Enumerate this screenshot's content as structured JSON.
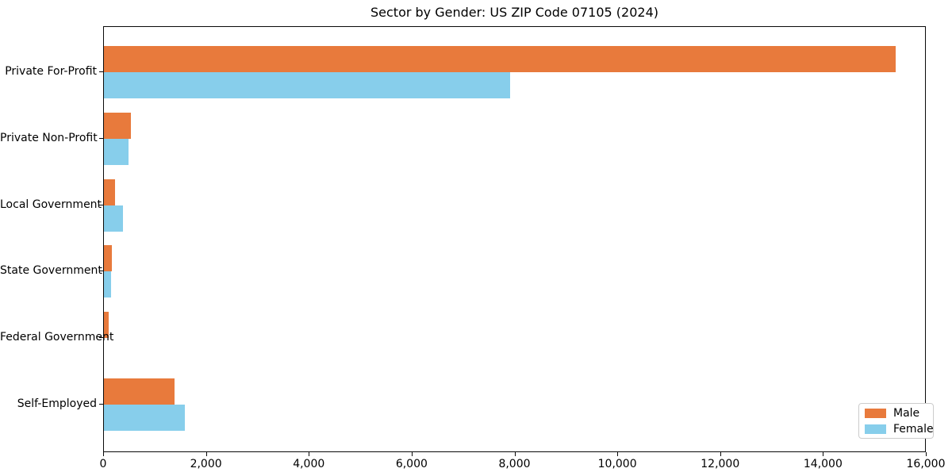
{
  "chart_data": {
    "type": "bar",
    "orientation": "horizontal",
    "title": "Sector by Gender: US ZIP Code 07105 (2024)",
    "categories": [
      "Private For-Profit",
      "Private Non-Profit",
      "Local Government",
      "State Government",
      "Federal Government",
      "Self-Employed"
    ],
    "series": [
      {
        "name": "Male",
        "color": "#e87a3c",
        "values": [
          15400,
          520,
          215,
          150,
          100,
          1380
        ]
      },
      {
        "name": "Female",
        "color": "#87ceeb",
        "values": [
          7900,
          475,
          375,
          145,
          0,
          1580
        ]
      }
    ],
    "xlim": [
      0,
      16000
    ],
    "xticks": {
      "values": [
        0,
        2000,
        4000,
        6000,
        8000,
        10000,
        12000,
        14000,
        16000
      ],
      "labels": [
        "0",
        "2,000",
        "4,000",
        "6,000",
        "8,000",
        "10,000",
        "12,000",
        "14,000",
        "16,000"
      ]
    },
    "legend": {
      "position": "lower-right",
      "entries": [
        "Male",
        "Female"
      ]
    },
    "grid": false
  }
}
